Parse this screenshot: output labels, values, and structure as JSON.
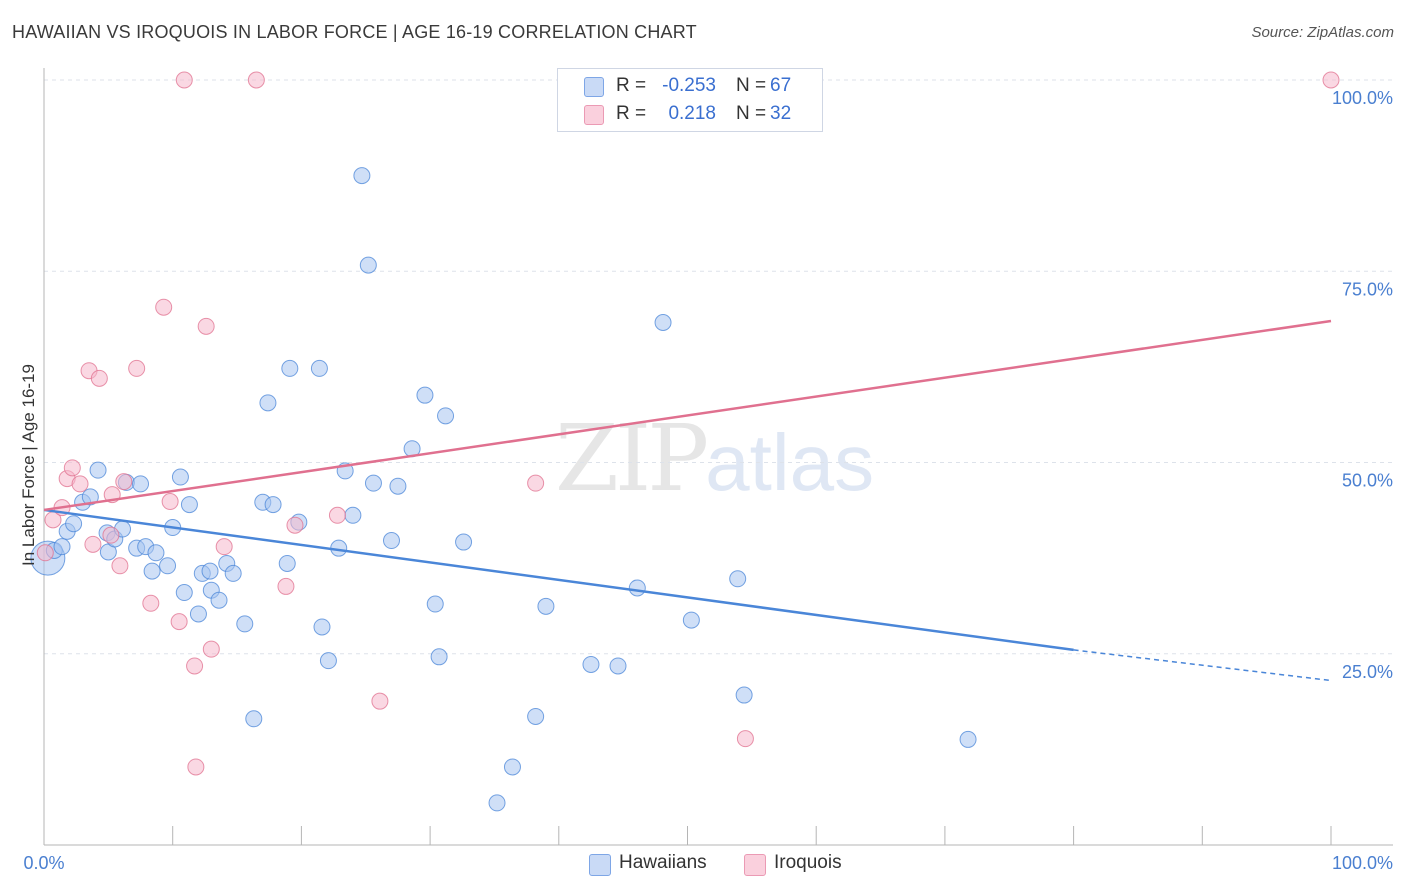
{
  "title": "HAWAIIAN VS IROQUOIS IN LABOR FORCE | AGE 16-19 CORRELATION CHART",
  "source": "Source: ZipAtlas.com",
  "watermark": {
    "zip": "ZIP",
    "atlas": "atlas"
  },
  "legend": {
    "rows": [
      {
        "r_label": "R =",
        "r_value": "-0.253",
        "n_label": "N =",
        "n_value": "67",
        "color": "#a8c4f0"
      },
      {
        "r_label": "R =",
        "r_value": "0.218",
        "n_label": "N =",
        "n_value": "32",
        "color": "#f5b8cc"
      }
    ]
  },
  "bottom_legend": [
    {
      "label": "Hawaiians",
      "color": "#a8c4f0"
    },
    {
      "label": "Iroquois",
      "color": "#f5b8cc"
    }
  ],
  "chart_data": {
    "type": "scatter",
    "title": "HAWAIIAN VS IROQUOIS IN LABOR FORCE | AGE 16-19 CORRELATION CHART",
    "xlabel": "",
    "ylabel": "In Labor Force | Age 16-19",
    "xlim": [
      0,
      100
    ],
    "ylim": [
      0,
      100
    ],
    "x_tick_labels": [
      "0.0%",
      "100.0%"
    ],
    "y_tick_labels": [
      "100.0%",
      "75.0%",
      "50.0%",
      "25.0%"
    ],
    "y_ticks": [
      100,
      75,
      50,
      25
    ],
    "grid": true,
    "series": [
      {
        "name": "Hawaiians",
        "color": "#4a86d8",
        "fill": "#a8c4f0",
        "trend": {
          "x0": 0,
          "y0": 43.8,
          "x1": 80,
          "y1": 25.5,
          "dash_to": 100,
          "dash_y": 21.5
        },
        "points": [
          [
            0.3,
            37.5
          ],
          [
            0.8,
            38.5
          ],
          [
            1.4,
            39
          ],
          [
            1.8,
            41
          ],
          [
            2.3,
            42
          ],
          [
            3,
            44.8
          ],
          [
            3.6,
            45.5
          ],
          [
            4.2,
            49
          ],
          [
            4.9,
            40.8
          ],
          [
            5,
            38.3
          ],
          [
            5.5,
            40
          ],
          [
            6.1,
            41.3
          ],
          [
            6.4,
            47.4
          ],
          [
            7.2,
            38.8
          ],
          [
            7.9,
            39
          ],
          [
            7.5,
            47.2
          ],
          [
            8.4,
            35.8
          ],
          [
            8.7,
            38.2
          ],
          [
            9.6,
            36.5
          ],
          [
            10,
            41.5
          ],
          [
            10.6,
            48.1
          ],
          [
            10.9,
            33
          ],
          [
            11.3,
            44.5
          ],
          [
            12,
            30.2
          ],
          [
            12.3,
            35.5
          ],
          [
            12.9,
            35.8
          ],
          [
            13,
            33.3
          ],
          [
            13.6,
            32
          ],
          [
            14.2,
            36.8
          ],
          [
            14.7,
            35.5
          ],
          [
            15.6,
            28.9
          ],
          [
            16.3,
            16.5
          ],
          [
            17,
            44.8
          ],
          [
            17.4,
            57.8
          ],
          [
            17.8,
            44.5
          ],
          [
            18.9,
            36.8
          ],
          [
            19.1,
            62.3
          ],
          [
            19.8,
            42.2
          ],
          [
            21.4,
            62.3
          ],
          [
            21.6,
            28.5
          ],
          [
            22.1,
            24.1
          ],
          [
            22.9,
            38.8
          ],
          [
            23.4,
            48.9
          ],
          [
            24,
            43.1
          ],
          [
            24.7,
            87.5
          ],
          [
            25.2,
            75.8
          ],
          [
            25.6,
            47.3
          ],
          [
            27,
            39.8
          ],
          [
            27.5,
            46.9
          ],
          [
            28.6,
            51.8
          ],
          [
            29.6,
            58.8
          ],
          [
            30.4,
            31.5
          ],
          [
            30.7,
            24.6
          ],
          [
            31.2,
            56.1
          ],
          [
            32.6,
            39.6
          ],
          [
            35.2,
            5.5
          ],
          [
            36.4,
            10.2
          ],
          [
            38.2,
            16.8
          ],
          [
            39,
            31.2
          ],
          [
            42.5,
            23.6
          ],
          [
            44.6,
            23.4
          ],
          [
            46.1,
            33.6
          ],
          [
            48.1,
            68.3
          ],
          [
            50.3,
            29.4
          ],
          [
            53.9,
            34.8
          ],
          [
            54.4,
            19.6
          ],
          [
            71.8,
            13.8
          ]
        ]
      },
      {
        "name": "Iroquois",
        "color": "#e0708f",
        "fill": "#f5b8cc",
        "trend": {
          "x0": 0,
          "y0": 43.8,
          "x1": 100,
          "y1": 68.5
        },
        "points": [
          [
            0.1,
            38.2
          ],
          [
            0.7,
            42.5
          ],
          [
            1.4,
            44.1
          ],
          [
            1.8,
            47.9
          ],
          [
            2.2,
            49.3
          ],
          [
            2.8,
            47.2
          ],
          [
            3.5,
            62
          ],
          [
            3.8,
            39.3
          ],
          [
            4.3,
            61
          ],
          [
            5.2,
            40.5
          ],
          [
            5.3,
            45.8
          ],
          [
            5.9,
            36.5
          ],
          [
            6.2,
            47.5
          ],
          [
            7.2,
            62.3
          ],
          [
            8.3,
            31.6
          ],
          [
            9.3,
            70.3
          ],
          [
            9.8,
            44.9
          ],
          [
            10.5,
            29.2
          ],
          [
            10.9,
            100
          ],
          [
            11.7,
            23.4
          ],
          [
            11.8,
            10.2
          ],
          [
            12.6,
            67.8
          ],
          [
            13,
            25.6
          ],
          [
            14,
            39
          ],
          [
            16.5,
            100
          ],
          [
            18.8,
            33.8
          ],
          [
            19.5,
            41.8
          ],
          [
            22.8,
            43.1
          ],
          [
            26.1,
            18.8
          ],
          [
            38.2,
            47.3
          ],
          [
            54.5,
            13.9
          ],
          [
            100,
            100
          ]
        ]
      }
    ]
  }
}
